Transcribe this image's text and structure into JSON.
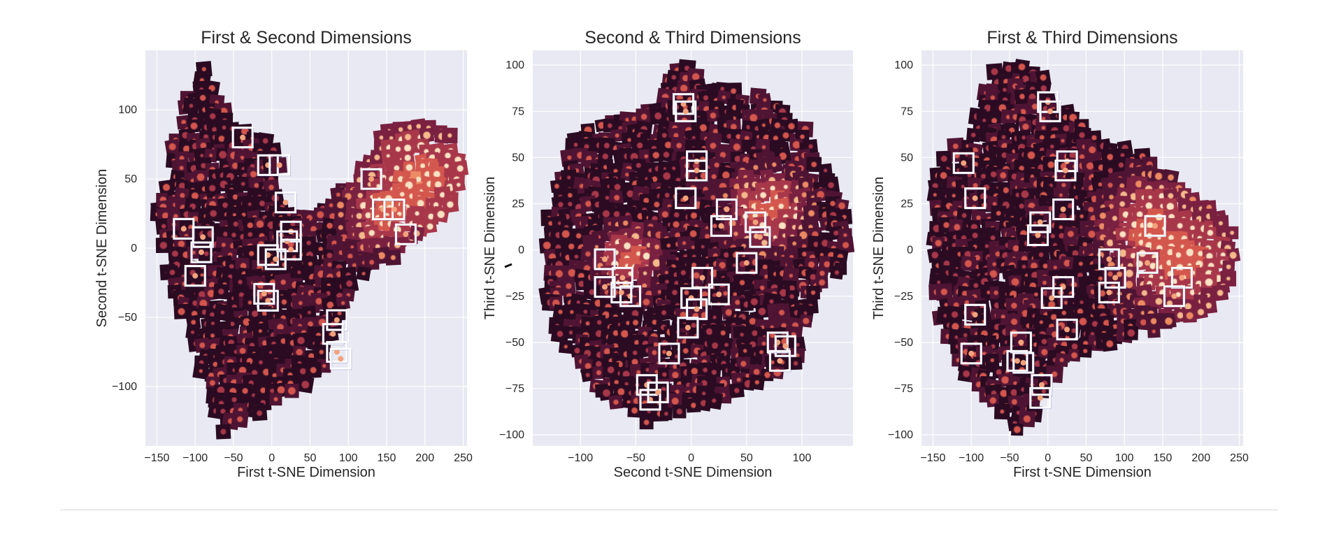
{
  "colors": {
    "plot_background": "#e8e9f2",
    "grid": "#ffffff",
    "highlight_box": "#ffffff",
    "highlight_box_shadow": "#5b5fb0",
    "colormap": [
      "#0b0410",
      "#2a0b22",
      "#4f1433",
      "#7a2040",
      "#a8374a",
      "#d4574d",
      "#ec8a63",
      "#f5b98c",
      "#fbe2c2"
    ]
  },
  "chart_data": [
    {
      "type": "scatter",
      "title": "First & Second Dimensions",
      "xlabel": "First t-SNE Dimension",
      "ylabel": "Second t-SNE Dimension",
      "xlim": [
        -165,
        255
      ],
      "ylim": [
        -143,
        143
      ],
      "xticks": [
        -150,
        -100,
        -50,
        0,
        50,
        100,
        150,
        200,
        250
      ],
      "yticks": [
        -100,
        -50,
        0,
        50,
        100
      ],
      "grid": true,
      "marker": "image-thumbnail",
      "highlighted_points": [
        {
          "x": -38,
          "y": 80
        },
        {
          "x": -5,
          "y": 60
        },
        {
          "x": 10,
          "y": 60
        },
        {
          "x": 18,
          "y": 33
        },
        {
          "x": 130,
          "y": 50
        },
        {
          "x": 145,
          "y": 28
        },
        {
          "x": 160,
          "y": 28
        },
        {
          "x": 175,
          "y": 10
        },
        {
          "x": -115,
          "y": 14
        },
        {
          "x": -90,
          "y": 8
        },
        {
          "x": -92,
          "y": -3
        },
        {
          "x": -100,
          "y": -20
        },
        {
          "x": 25,
          "y": 12
        },
        {
          "x": 20,
          "y": 5
        },
        {
          "x": 25,
          "y": -1
        },
        {
          "x": -5,
          "y": -5
        },
        {
          "x": 5,
          "y": -8
        },
        {
          "x": -5,
          "y": -38
        },
        {
          "x": -10,
          "y": -33
        },
        {
          "x": 85,
          "y": -52
        },
        {
          "x": 80,
          "y": -62
        },
        {
          "x": 85,
          "y": -75
        },
        {
          "x": 90,
          "y": -80
        }
      ]
    },
    {
      "type": "scatter",
      "title": "Second & Third Dimensions",
      "xlabel": "Second t-SNE Dimension",
      "ylabel": "Third t-SNE Dimension",
      "xlim": [
        -143,
        146
      ],
      "ylim": [
        -106,
        108
      ],
      "xticks": [
        -100,
        -50,
        0,
        50,
        100
      ],
      "yticks": [
        -100,
        -75,
        -50,
        -25,
        0,
        25,
        50,
        75,
        100
      ],
      "grid": true,
      "marker": "image-thumbnail",
      "highlighted_points": [
        {
          "x": -7,
          "y": 79
        },
        {
          "x": -5,
          "y": 75
        },
        {
          "x": 5,
          "y": 48
        },
        {
          "x": 5,
          "y": 43
        },
        {
          "x": -5,
          "y": 28
        },
        {
          "x": 32,
          "y": 22
        },
        {
          "x": 27,
          "y": 13
        },
        {
          "x": 58,
          "y": 15
        },
        {
          "x": 62,
          "y": 7
        },
        {
          "x": -78,
          "y": -5
        },
        {
          "x": -62,
          "y": -15
        },
        {
          "x": -55,
          "y": -25
        },
        {
          "x": -63,
          "y": -23
        },
        {
          "x": -78,
          "y": -20
        },
        {
          "x": 50,
          "y": -7
        },
        {
          "x": 10,
          "y": -15
        },
        {
          "x": 25,
          "y": -24
        },
        {
          "x": 0,
          "y": -26
        },
        {
          "x": 5,
          "y": -32
        },
        {
          "x": -3,
          "y": -42
        },
        {
          "x": -20,
          "y": -56
        },
        {
          "x": 78,
          "y": -50
        },
        {
          "x": 85,
          "y": -52
        },
        {
          "x": 80,
          "y": -60
        },
        {
          "x": -40,
          "y": -73
        },
        {
          "x": -37,
          "y": -81
        },
        {
          "x": -30,
          "y": -77
        }
      ]
    },
    {
      "type": "scatter",
      "title": "First & Third Dimensions",
      "xlabel": "First t-SNE Dimension",
      "ylabel": "Third t-SNE Dimension",
      "xlim": [
        -165,
        255
      ],
      "ylim": [
        -106,
        108
      ],
      "xticks": [
        -150,
        -100,
        -50,
        0,
        50,
        100,
        150,
        200,
        250
      ],
      "yticks": [
        -100,
        -75,
        -50,
        -25,
        0,
        25,
        50,
        75,
        100
      ],
      "grid": true,
      "marker": "image-thumbnail",
      "highlighted_points": [
        {
          "x": 0,
          "y": 80
        },
        {
          "x": 3,
          "y": 75
        },
        {
          "x": -110,
          "y": 47
        },
        {
          "x": -95,
          "y": 28
        },
        {
          "x": 25,
          "y": 48
        },
        {
          "x": 23,
          "y": 43
        },
        {
          "x": 20,
          "y": 22
        },
        {
          "x": -10,
          "y": 15
        },
        {
          "x": -13,
          "y": 8
        },
        {
          "x": 140,
          "y": 13
        },
        {
          "x": 80,
          "y": -5
        },
        {
          "x": 88,
          "y": -15
        },
        {
          "x": 80,
          "y": -23
        },
        {
          "x": 130,
          "y": -7
        },
        {
          "x": 175,
          "y": -15
        },
        {
          "x": 165,
          "y": -25
        },
        {
          "x": 20,
          "y": -20
        },
        {
          "x": 5,
          "y": -26
        },
        {
          "x": 25,
          "y": -43
        },
        {
          "x": -95,
          "y": -35
        },
        {
          "x": -100,
          "y": -56
        },
        {
          "x": -35,
          "y": -50
        },
        {
          "x": -32,
          "y": -61
        },
        {
          "x": -40,
          "y": -60
        },
        {
          "x": -8,
          "y": -73
        },
        {
          "x": -10,
          "y": -80
        }
      ]
    }
  ]
}
